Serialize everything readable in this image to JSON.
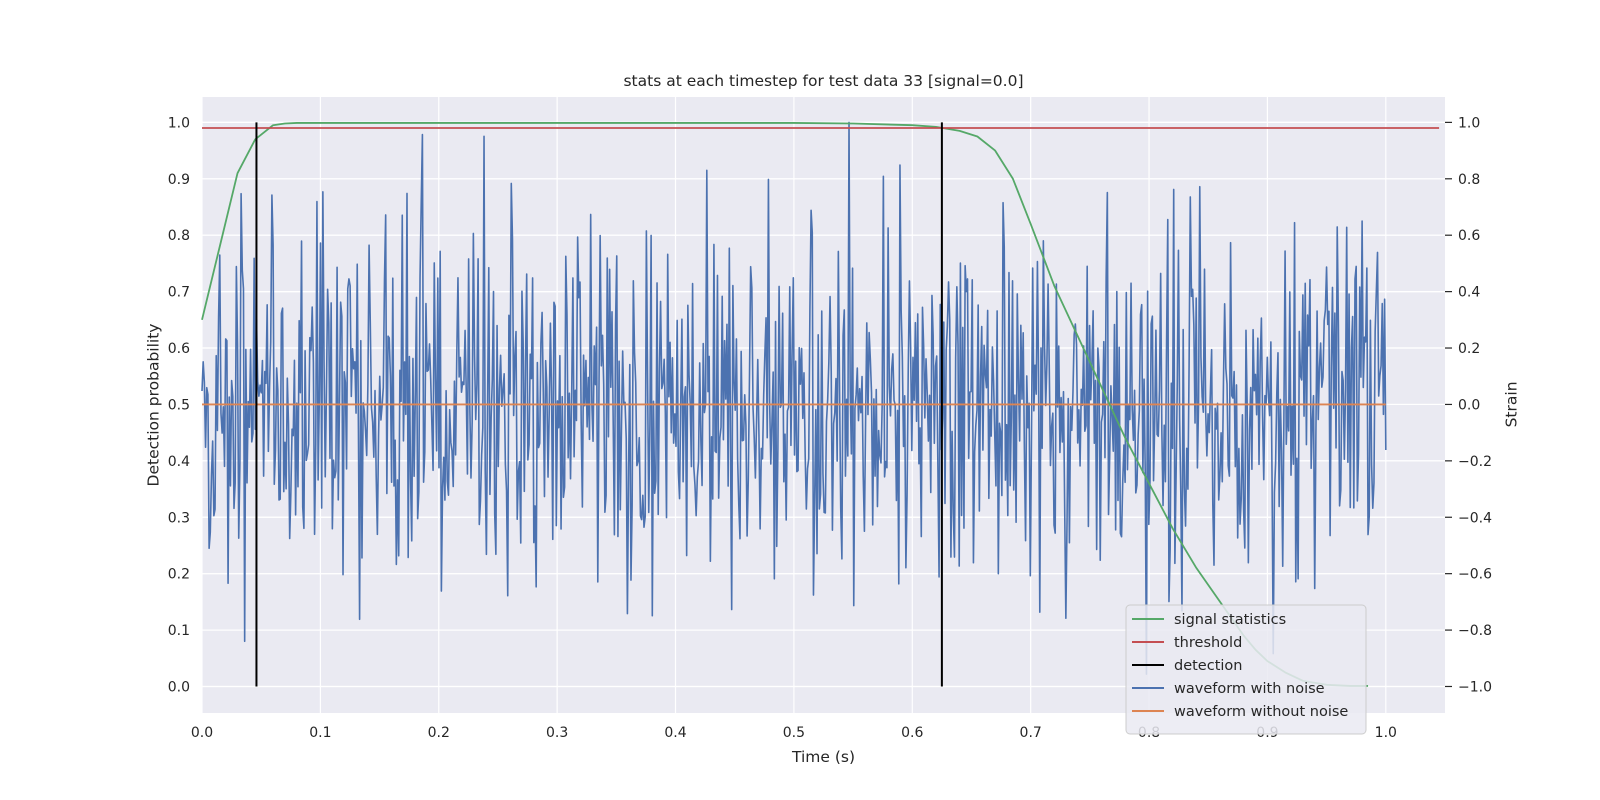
{
  "chart_data": {
    "type": "line",
    "title": "stats at each timestep for test data 33 [signal=0.0]",
    "xlabel": "Time (s)",
    "ylabel_left": "Detection probability",
    "ylabel_right": "Strain",
    "xlim": [
      0.0,
      1.05
    ],
    "ylim_left": [
      -0.047,
      1.045
    ],
    "ylim_right": [
      -1.094,
      1.09
    ],
    "x_ticks": [
      "0.0",
      "0.1",
      "0.2",
      "0.3",
      "0.4",
      "0.5",
      "0.6",
      "0.7",
      "0.8",
      "0.9",
      "1.0"
    ],
    "y_left_ticks": [
      "0.0",
      "0.1",
      "0.2",
      "0.3",
      "0.4",
      "0.5",
      "0.6",
      "0.7",
      "0.8",
      "0.9",
      "1.0"
    ],
    "y_right_ticks": [
      "−1.0",
      "−0.8",
      "−0.6",
      "−0.4",
      "−0.2",
      "0.0",
      "0.2",
      "0.4",
      "0.6",
      "0.8",
      "1.0"
    ],
    "grid": true,
    "legend_position": "bottom-right",
    "series": [
      {
        "name": "signal statistics",
        "axis": "left",
        "color": "#55a868",
        "x": [
          0.0,
          0.015,
          0.03,
          0.045,
          0.06,
          0.07,
          0.08,
          0.1,
          0.2,
          0.3,
          0.4,
          0.5,
          0.55,
          0.6,
          0.62,
          0.64,
          0.655,
          0.67,
          0.685,
          0.7,
          0.72,
          0.74,
          0.76,
          0.78,
          0.8,
          0.82,
          0.84,
          0.86,
          0.87,
          0.88,
          0.89,
          0.9,
          0.915,
          0.93,
          0.95,
          0.97,
          0.985
        ],
        "y": [
          0.65,
          0.78,
          0.91,
          0.97,
          0.995,
          0.998,
          0.999,
          0.999,
          0.999,
          0.999,
          0.999,
          0.999,
          0.998,
          0.995,
          0.992,
          0.985,
          0.975,
          0.95,
          0.9,
          0.82,
          0.71,
          0.62,
          0.53,
          0.44,
          0.36,
          0.28,
          0.21,
          0.15,
          0.12,
          0.09,
          0.065,
          0.045,
          0.025,
          0.01,
          0.003,
          0.001,
          0.001
        ]
      },
      {
        "name": "threshold",
        "axis": "left",
        "color": "#c44e52",
        "x": [
          0.0,
          1.045
        ],
        "y": [
          0.99,
          0.99
        ]
      },
      {
        "name": "detection",
        "axis": "left",
        "color": "#000000",
        "segments": [
          {
            "x": 0.046,
            "y0": 0.0,
            "y1": 1.0
          },
          {
            "x": 0.625,
            "y0": 0.0,
            "y1": 1.0
          }
        ]
      },
      {
        "name": "waveform with noise",
        "axis": "right",
        "color": "#4c72b0",
        "x_start": 0.0,
        "x_end": 1.0,
        "samples": 1000,
        "std": 0.32,
        "range": [
          -1.0,
          1.0
        ]
      },
      {
        "name": "waveform without noise",
        "axis": "right",
        "color": "#dd8452",
        "x": [
          0.0,
          1.0
        ],
        "y": [
          0.0,
          0.0
        ]
      }
    ]
  },
  "legend": {
    "items": [
      {
        "label": "signal statistics",
        "color": "#55a868"
      },
      {
        "label": "threshold",
        "color": "#c44e52"
      },
      {
        "label": "detection",
        "color": "#000000"
      },
      {
        "label": "waveform with noise",
        "color": "#4c72b0"
      },
      {
        "label": "waveform without noise",
        "color": "#dd8452"
      }
    ]
  },
  "colors": {
    "plot_background": "#eaeaf2",
    "grid": "#ffffff",
    "text": "#262626"
  }
}
